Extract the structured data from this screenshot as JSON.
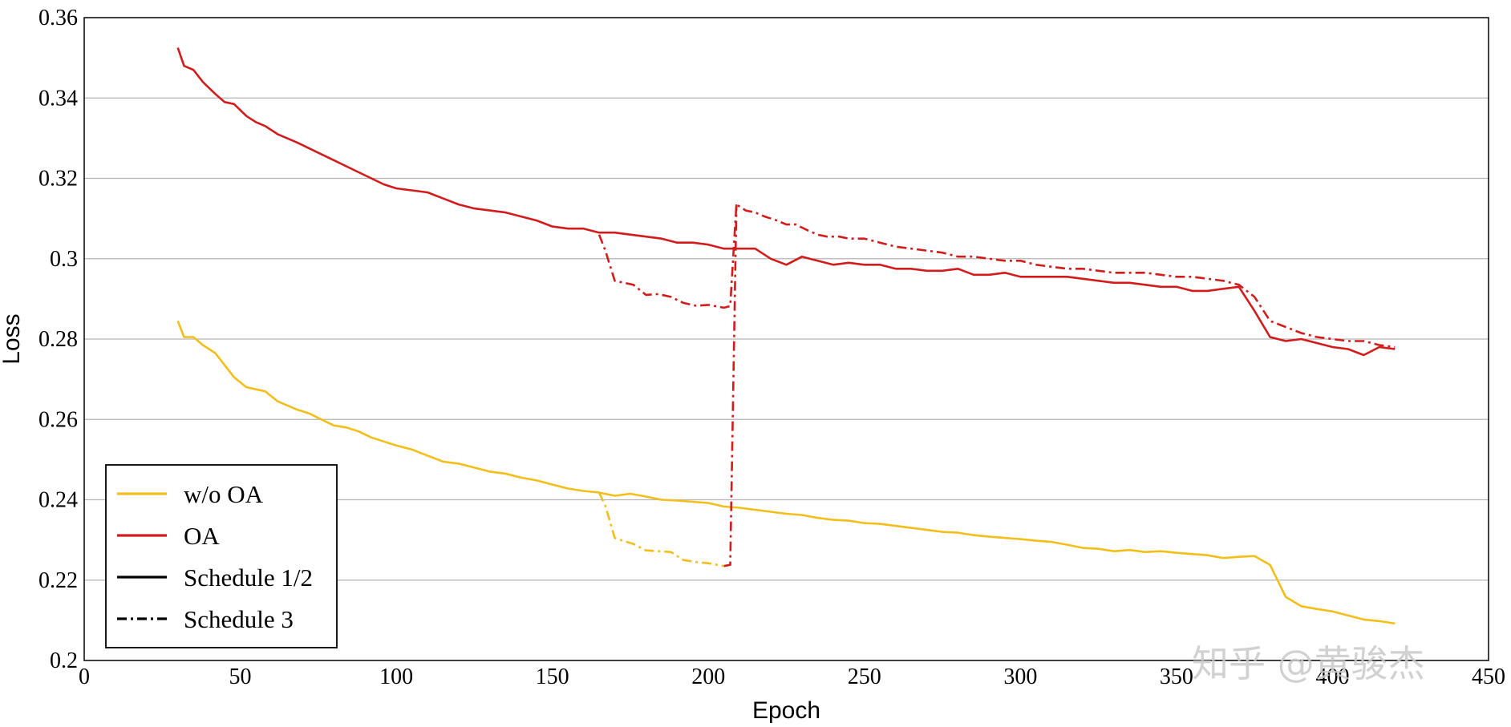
{
  "watermark": "知乎 @黄骏杰",
  "chart_data": {
    "type": "line",
    "xlabel": "Epoch",
    "ylabel": "Loss",
    "xlim": [
      0,
      450
    ],
    "ylim": [
      0.2,
      0.36
    ],
    "xticks": [
      0,
      50,
      100,
      150,
      200,
      250,
      300,
      350,
      400,
      450
    ],
    "yticks": [
      0.2,
      0.22,
      0.24,
      0.26,
      0.28,
      0.3,
      0.32,
      0.34,
      0.36
    ],
    "ytick_labels": [
      "0.2",
      "0.22",
      "0.24",
      "0.26",
      "0.28",
      "0.3",
      "0.32",
      "0.34",
      "0.36"
    ],
    "grid": "horizontal",
    "legend_position": "bottom-left",
    "legend": [
      {
        "label": "w/o OA",
        "color": "#F2BE1A",
        "style": "solid"
      },
      {
        "label": "OA",
        "color": "#D21C1C",
        "style": "solid"
      },
      {
        "label": "Schedule 1/2",
        "color": "#000000",
        "style": "solid"
      },
      {
        "label": "Schedule 3",
        "color": "#000000",
        "style": "dashdot"
      }
    ],
    "series": [
      {
        "model": "OA",
        "schedule": "Schedule 1/2",
        "color": "#D21C1C",
        "style": "solid",
        "x": [
          30,
          32,
          35,
          38,
          42,
          45,
          48,
          52,
          55,
          58,
          62,
          65,
          68,
          72,
          76,
          80,
          84,
          88,
          92,
          96,
          100,
          105,
          110,
          115,
          120,
          125,
          130,
          135,
          140,
          145,
          150,
          155,
          160,
          165,
          170,
          175,
          180,
          185,
          190,
          195,
          200,
          205,
          210,
          215,
          220,
          225,
          230,
          235,
          240,
          245,
          250,
          255,
          260,
          265,
          270,
          275,
          280,
          285,
          290,
          295,
          300,
          305,
          310,
          315,
          320,
          325,
          330,
          335,
          340,
          345,
          350,
          355,
          360,
          365,
          370,
          375,
          380,
          385,
          390,
          395,
          400,
          405,
          410,
          415,
          420
        ],
        "y": [
          0.3525,
          0.348,
          0.347,
          0.344,
          0.341,
          0.339,
          0.3385,
          0.3355,
          0.334,
          0.333,
          0.331,
          0.33,
          0.329,
          0.3275,
          0.326,
          0.3245,
          0.323,
          0.3215,
          0.32,
          0.3185,
          0.3175,
          0.317,
          0.3165,
          0.315,
          0.3135,
          0.3125,
          0.312,
          0.3115,
          0.3105,
          0.3095,
          0.308,
          0.3075,
          0.3075,
          0.3065,
          0.3065,
          0.306,
          0.3055,
          0.305,
          0.304,
          0.304,
          0.3035,
          0.3025,
          0.3025,
          0.3025,
          0.3,
          0.2985,
          0.3005,
          0.2995,
          0.2985,
          0.299,
          0.2985,
          0.2985,
          0.2975,
          0.2975,
          0.297,
          0.297,
          0.2975,
          0.296,
          0.296,
          0.2965,
          0.2955,
          0.2955,
          0.2955,
          0.2955,
          0.295,
          0.2945,
          0.294,
          0.294,
          0.2935,
          0.293,
          0.293,
          0.292,
          0.292,
          0.2925,
          0.293,
          0.287,
          0.2805,
          0.2795,
          0.28,
          0.279,
          0.278,
          0.2775,
          0.276,
          0.278,
          0.2775
        ]
      },
      {
        "model": "OA",
        "schedule": "Schedule 3",
        "color": "#D21C1C",
        "style": "dashdot",
        "x": [
          165,
          167,
          170,
          173,
          176,
          180,
          184,
          188,
          192,
          196,
          200,
          205,
          207,
          209,
          212,
          215,
          218,
          222,
          225,
          228,
          232,
          235,
          238,
          242,
          245,
          250,
          255,
          260,
          265,
          270,
          275,
          280,
          285,
          290,
          295,
          300,
          305,
          310,
          315,
          320,
          325,
          330,
          335,
          340,
          345,
          350,
          355,
          360,
          365,
          370,
          375,
          380,
          385,
          390,
          395,
          400,
          405,
          410,
          415,
          420
        ],
        "y": [
          0.306,
          0.302,
          0.2945,
          0.294,
          0.2935,
          0.291,
          0.2912,
          0.2905,
          0.289,
          0.2883,
          0.2885,
          0.2878,
          0.2882,
          0.3135,
          0.312,
          0.3115,
          0.3105,
          0.3095,
          0.3085,
          0.3085,
          0.307,
          0.306,
          0.3055,
          0.3055,
          0.305,
          0.305,
          0.304,
          0.303,
          0.3025,
          0.302,
          0.3015,
          0.3005,
          0.3005,
          0.3,
          0.2995,
          0.2995,
          0.2985,
          0.298,
          0.2975,
          0.2975,
          0.297,
          0.2965,
          0.2965,
          0.2965,
          0.296,
          0.2955,
          0.2955,
          0.295,
          0.2945,
          0.2935,
          0.2905,
          0.2845,
          0.283,
          0.2815,
          0.2805,
          0.28,
          0.2795,
          0.2795,
          0.2785,
          0.278
        ]
      },
      {
        "model": "w/o OA",
        "schedule": "Schedule 1/2",
        "color": "#F2BE1A",
        "style": "solid",
        "x": [
          30,
          32,
          35,
          38,
          42,
          45,
          48,
          52,
          55,
          58,
          62,
          65,
          68,
          72,
          76,
          80,
          84,
          88,
          92,
          96,
          100,
          105,
          110,
          115,
          120,
          125,
          130,
          135,
          140,
          145,
          150,
          155,
          160,
          165,
          170,
          175,
          180,
          185,
          190,
          195,
          200,
          205,
          210,
          215,
          220,
          225,
          230,
          235,
          240,
          245,
          250,
          255,
          260,
          265,
          270,
          275,
          280,
          285,
          290,
          295,
          300,
          305,
          310,
          315,
          320,
          325,
          330,
          335,
          340,
          345,
          350,
          355,
          360,
          365,
          370,
          375,
          380,
          385,
          390,
          395,
          400,
          405,
          410,
          415,
          420
        ],
        "y": [
          0.2845,
          0.2805,
          0.2805,
          0.2785,
          0.2765,
          0.2735,
          0.2705,
          0.268,
          0.2675,
          0.267,
          0.2645,
          0.2635,
          0.2625,
          0.2615,
          0.26,
          0.2585,
          0.258,
          0.257,
          0.2555,
          0.2545,
          0.2535,
          0.2525,
          0.251,
          0.2495,
          0.249,
          0.248,
          0.247,
          0.2465,
          0.2455,
          0.2448,
          0.2438,
          0.2428,
          0.2422,
          0.2418,
          0.241,
          0.2415,
          0.2408,
          0.24,
          0.2398,
          0.2395,
          0.2392,
          0.2383,
          0.238,
          0.2375,
          0.237,
          0.2365,
          0.2362,
          0.2355,
          0.235,
          0.2348,
          0.2342,
          0.234,
          0.2335,
          0.233,
          0.2325,
          0.232,
          0.2318,
          0.2312,
          0.2308,
          0.2305,
          0.2302,
          0.2298,
          0.2295,
          0.2288,
          0.228,
          0.2278,
          0.2272,
          0.2275,
          0.227,
          0.2272,
          0.2268,
          0.2265,
          0.2262,
          0.2255,
          0.2258,
          0.226,
          0.2238,
          0.2158,
          0.2135,
          0.2128,
          0.2122,
          0.2112,
          0.2102,
          0.2098,
          0.2092
        ]
      },
      {
        "model": "w/o OA",
        "schedule": "Schedule 3",
        "color": "#F2BE1A",
        "style": "dashdot",
        "x": [
          165,
          167,
          170,
          173,
          176,
          180,
          184,
          188,
          192,
          196,
          200,
          205
        ],
        "y": [
          0.2418,
          0.2385,
          0.2305,
          0.2297,
          0.229,
          0.2274,
          0.2272,
          0.227,
          0.225,
          0.2245,
          0.2242,
          0.2235
        ]
      }
    ],
    "connectors": [
      {
        "color": "#D21C1C",
        "style": "dashdot",
        "x": [
          205,
          207,
          209
        ],
        "y": [
          0.2235,
          0.2238,
          0.3135
        ]
      }
    ]
  }
}
